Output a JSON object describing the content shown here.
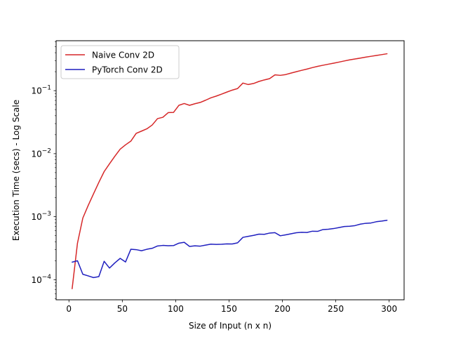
{
  "chart_data": {
    "type": "line",
    "title": "",
    "xlabel": "Size of Input (n x n)",
    "ylabel": "Execution Time (secs) - Log Scale",
    "x_scale": "linear",
    "y_scale": "log",
    "xlim": [
      -12,
      314
    ],
    "ylim": [
      4.8e-05,
      0.62
    ],
    "x_ticks": [
      0,
      50,
      100,
      150,
      200,
      250,
      300
    ],
    "x_tick_labels": [
      "0",
      "50",
      "100",
      "150",
      "200",
      "250",
      "300"
    ],
    "y_ticks": [
      0.0001,
      0.001,
      0.01,
      0.1
    ],
    "y_tick_labels": [
      {
        "base": "10",
        "exp": "−4"
      },
      {
        "base": "10",
        "exp": "−3"
      },
      {
        "base": "10",
        "exp": "−2"
      },
      {
        "base": "10",
        "exp": "−1"
      }
    ],
    "grid": false,
    "legend_position": "upper-left",
    "series": [
      {
        "name": "Naive Conv 2D",
        "color": "#d62728",
        "x": [
          3,
          8,
          13,
          18,
          23,
          28,
          33,
          38,
          43,
          48,
          53,
          58,
          63,
          68,
          73,
          78,
          83,
          88,
          93,
          98,
          103,
          108,
          113,
          118,
          123,
          128,
          133,
          138,
          143,
          148,
          153,
          158,
          163,
          168,
          173,
          178,
          183,
          188,
          193,
          198,
          203,
          208,
          213,
          218,
          223,
          228,
          233,
          238,
          243,
          248,
          253,
          258,
          263,
          268,
          273,
          278,
          283,
          288,
          293,
          298
        ],
        "y": [
          7.2e-05,
          0.00038,
          0.00095,
          0.0015,
          0.0023,
          0.0035,
          0.0052,
          0.0069,
          0.0091,
          0.0118,
          0.0138,
          0.0158,
          0.021,
          0.0228,
          0.0248,
          0.0285,
          0.036,
          0.0378,
          0.0448,
          0.0452,
          0.0585,
          0.0625,
          0.0585,
          0.062,
          0.065,
          0.0705,
          0.077,
          0.082,
          0.088,
          0.095,
          0.102,
          0.108,
          0.132,
          0.125,
          0.13,
          0.14,
          0.148,
          0.155,
          0.178,
          0.175,
          0.18,
          0.19,
          0.2,
          0.21,
          0.22,
          0.232,
          0.243,
          0.253,
          0.263,
          0.273,
          0.284,
          0.296,
          0.308,
          0.318,
          0.329,
          0.34,
          0.351,
          0.362,
          0.373,
          0.385
        ]
      },
      {
        "name": "PyTorch Conv 2D",
        "color": "#1f1fbf",
        "x": [
          3,
          8,
          13,
          18,
          23,
          28,
          33,
          38,
          43,
          48,
          53,
          58,
          63,
          68,
          73,
          78,
          83,
          88,
          93,
          98,
          103,
          108,
          113,
          118,
          123,
          128,
          133,
          138,
          143,
          148,
          153,
          158,
          163,
          168,
          173,
          178,
          183,
          188,
          193,
          198,
          203,
          208,
          213,
          218,
          223,
          228,
          233,
          238,
          243,
          248,
          253,
          258,
          263,
          268,
          273,
          278,
          283,
          288,
          293,
          298
        ],
        "y": [
          0.00019,
          0.0002,
          0.000122,
          0.000115,
          0.000108,
          0.000112,
          0.000196,
          0.000153,
          0.000185,
          0.000218,
          0.000191,
          0.000304,
          0.0003,
          0.000288,
          0.000304,
          0.000315,
          0.000343,
          0.00035,
          0.000346,
          0.000348,
          0.00038,
          0.000392,
          0.000337,
          0.000345,
          0.000341,
          0.000354,
          0.000367,
          0.000363,
          0.000365,
          0.00037,
          0.000369,
          0.000385,
          0.00047,
          0.000488,
          0.000505,
          0.000528,
          0.000525,
          0.00055,
          0.000558,
          0.000498,
          0.000515,
          0.000535,
          0.000556,
          0.000565,
          0.000562,
          0.000588,
          0.000585,
          0.000625,
          0.000632,
          0.000648,
          0.000672,
          0.000698,
          0.000705,
          0.000722,
          0.000762,
          0.000785,
          0.000795,
          0.000832,
          0.000852,
          0.000878
        ]
      }
    ]
  }
}
